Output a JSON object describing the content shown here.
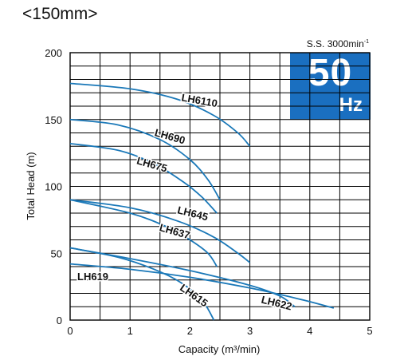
{
  "header": {
    "size_open": "<",
    "size_value": "150mm",
    "size_close": ">",
    "speed_prefix": "S.S. 3000min",
    "speed_sup": "-1"
  },
  "badge": {
    "number": "50",
    "unit": "Hz",
    "color": "#1a6fc0"
  },
  "chart_data": {
    "type": "line",
    "xlabel": "Capacity (m³/min)",
    "ylabel": "Total Head (m)",
    "xlim": [
      0,
      5
    ],
    "ylim": [
      0,
      200
    ],
    "x_ticks": [
      0,
      1,
      2,
      3,
      4,
      5
    ],
    "y_ticks": [
      0,
      50,
      100,
      150,
      200
    ],
    "grid": true,
    "line_color": "#1a78b8",
    "series": [
      {
        "name": "LH6110",
        "points": [
          [
            0,
            177
          ],
          [
            1,
            173
          ],
          [
            1.8,
            165
          ],
          [
            2.4,
            153
          ],
          [
            2.8,
            140
          ],
          [
            3.0,
            130
          ]
        ],
        "label_at": [
          1.85,
          164
        ],
        "label_rot": 10
      },
      {
        "name": "LH690",
        "points": [
          [
            0,
            150
          ],
          [
            0.8,
            146
          ],
          [
            1.5,
            135
          ],
          [
            2.0,
            120
          ],
          [
            2.3,
            105
          ],
          [
            2.5,
            90
          ]
        ],
        "label_at": [
          1.4,
          138
        ],
        "label_rot": 16
      },
      {
        "name": "LH675",
        "points": [
          [
            0,
            132
          ],
          [
            0.8,
            127
          ],
          [
            1.4,
            117
          ],
          [
            1.9,
            103
          ],
          [
            2.2,
            92
          ],
          [
            2.45,
            80
          ]
        ],
        "label_at": [
          1.1,
          117
        ],
        "label_rot": 16
      },
      {
        "name": "LH645",
        "points": [
          [
            0,
            90
          ],
          [
            1,
            84
          ],
          [
            1.8,
            74
          ],
          [
            2.4,
            62
          ],
          [
            2.8,
            50
          ],
          [
            3.0,
            43
          ]
        ],
        "label_at": [
          1.78,
          80
        ],
        "label_rot": 14
      },
      {
        "name": "LH637",
        "points": [
          [
            0,
            90
          ],
          [
            1,
            80
          ],
          [
            1.6,
            70
          ],
          [
            2.0,
            60
          ],
          [
            2.3,
            50
          ],
          [
            2.45,
            40
          ]
        ],
        "label_at": [
          1.48,
          67
        ],
        "label_rot": 16
      },
      {
        "name": "LH622",
        "points": [
          [
            0,
            54
          ],
          [
            1,
            46
          ],
          [
            2,
            37
          ],
          [
            3,
            26
          ],
          [
            3.5,
            18
          ],
          [
            3.75,
            10
          ]
        ],
        "label_at": [
          3.18,
          13
        ],
        "label_rot": 14
      },
      {
        "name": "LH619",
        "points": [
          [
            0,
            42
          ],
          [
            1,
            38
          ],
          [
            2,
            32
          ],
          [
            3,
            24
          ],
          [
            3.8,
            16
          ],
          [
            4.4,
            9
          ]
        ],
        "label_at": [
          0.12,
          30
        ],
        "label_rot": 0
      },
      {
        "name": "LH615",
        "points": [
          [
            0,
            54
          ],
          [
            0.8,
            47
          ],
          [
            1.4,
            38
          ],
          [
            1.85,
            28
          ],
          [
            2.2,
            15
          ],
          [
            2.4,
            0
          ]
        ],
        "label_at": [
          1.82,
          23
        ],
        "label_rot": 35
      }
    ]
  }
}
